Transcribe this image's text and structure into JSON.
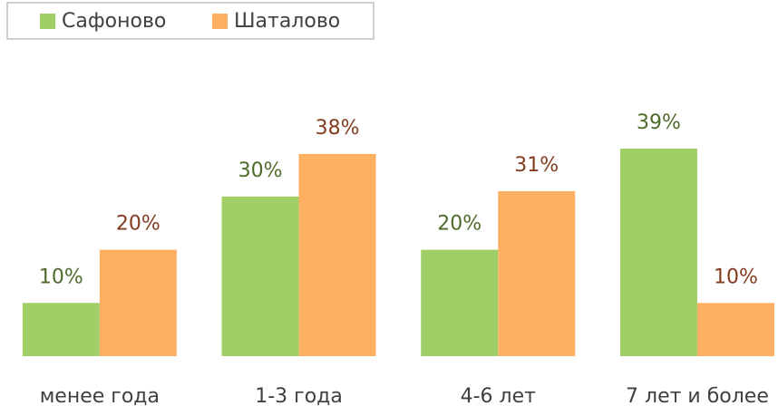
{
  "chart_data": {
    "type": "bar",
    "categories": [
      "менее года",
      "1-3 года",
      "4-6 лет",
      "7 лет и более"
    ],
    "series": [
      {
        "name": "Сафоново",
        "color": "#a0cf67",
        "label_color": "#4f6b2c",
        "values": [
          10,
          30,
          20,
          39
        ],
        "value_labels": [
          "10%",
          "30%",
          "20%",
          "39%"
        ]
      },
      {
        "name": "Шаталово",
        "color": "#fdb062",
        "label_color": "#843c20",
        "values": [
          20,
          38,
          31,
          10
        ],
        "value_labels": [
          "20%",
          "38%",
          "31%",
          "10%"
        ]
      }
    ],
    "legend": "top-left"
  }
}
